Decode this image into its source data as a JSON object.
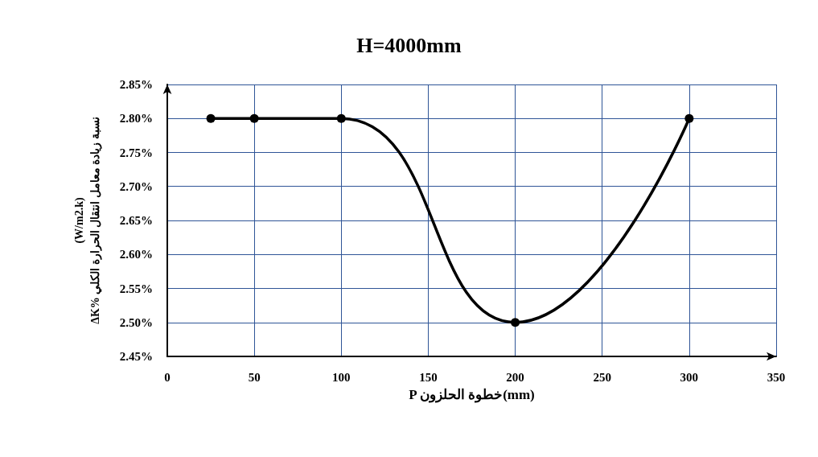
{
  "chart_data": {
    "type": "line",
    "title": "H=4000mm",
    "xlabel": "P خطوة الحلزون(mm)",
    "ylabel": "(W/m2.k)\nΔK% نسبة زيادة معامل انتقال الحرارة الكلي",
    "x": [
      25,
      50,
      100,
      200,
      300
    ],
    "series": [
      {
        "color": "#000000",
        "values": [
          2.8,
          2.8,
          2.8,
          2.5,
          2.8
        ]
      }
    ],
    "xlim": [
      0,
      350
    ],
    "xticks": [
      0,
      50,
      100,
      150,
      200,
      250,
      300,
      350
    ],
    "ylim": [
      2.45,
      2.85
    ],
    "yticks": [
      {
        "value": 2.45,
        "label": "2.45%"
      },
      {
        "value": 2.5,
        "label": "2.50%"
      },
      {
        "value": 2.55,
        "label": "2.55%"
      },
      {
        "value": 2.6,
        "label": "2.60%"
      },
      {
        "value": 2.65,
        "label": "2.65%"
      },
      {
        "value": 2.7,
        "label": "2.70%"
      },
      {
        "value": 2.75,
        "label": "2.75%"
      },
      {
        "value": 2.8,
        "label": "2.80%"
      },
      {
        "value": 2.85,
        "label": "2.85%"
      }
    ],
    "grid": true,
    "marker": "circle",
    "line_style": "solid"
  }
}
